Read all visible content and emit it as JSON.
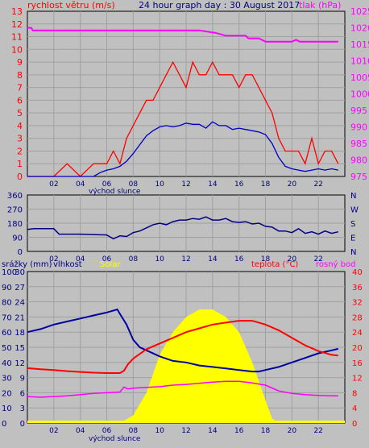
{
  "header": {
    "title": "24 hour graph day : 30 August 2017",
    "left_label": "rychlost větru (m/s)",
    "right_label": "tlak (hPa)"
  },
  "colors": {
    "background": "#c0c0c0",
    "grid": "#a0a0a0",
    "wind": "#ff0000",
    "wind_avg": "#0000c0",
    "pressure": "#ff00ff",
    "direction": "#000080",
    "humidity": "#0000a0",
    "temperature": "#ff0000",
    "dew_point": "#ff00ff",
    "solar": "#ffff00",
    "rain": "#ffff00",
    "axis_text_black": "#000080",
    "axis_text_red": "#ff0000",
    "axis_text_pink": "#ff00ff"
  },
  "chart_data": [
    {
      "id": "wind_pressure",
      "type": "line",
      "title": "24 hour graph day : 30 August 2017",
      "ylabel": "rychlost větru (m/s)",
      "y2label": "tlak (hPa)",
      "x_ticks": [
        "02",
        "04",
        "06",
        "08",
        "10",
        "12",
        "14",
        "16",
        "18",
        "20",
        "22"
      ],
      "x_caption": "východ slunce",
      "y_ticks": [
        0,
        1,
        2,
        3,
        4,
        5,
        6,
        7,
        8,
        9,
        10,
        11,
        12,
        13
      ],
      "y_range": [
        0,
        13
      ],
      "y2_ticks": [
        975,
        980,
        985,
        990,
        995,
        1000,
        1005,
        1010,
        1015,
        1020,
        1025
      ],
      "y2_range": [
        975,
        1025
      ],
      "series": [
        {
          "key": "gust",
          "color": "#ff0000",
          "x": [
            0,
            2,
            3,
            4,
            5,
            5.5,
            6,
            6.5,
            7,
            7.5,
            8,
            8.5,
            9,
            9.5,
            10,
            10.5,
            11,
            11.5,
            12,
            12.5,
            13,
            13.5,
            14,
            14.5,
            15,
            15.5,
            16,
            16.5,
            17,
            17.5,
            18,
            18.5,
            19,
            19.5,
            20,
            20.5,
            21,
            21.5,
            22,
            22.5,
            23,
            23.5
          ],
          "y": [
            0,
            0,
            1,
            0,
            1,
            1,
            1,
            2,
            1,
            3,
            4,
            5,
            6,
            6,
            7,
            8,
            9,
            8,
            7,
            9,
            8,
            8,
            9,
            8,
            8,
            8,
            7,
            8,
            8,
            7,
            6,
            5,
            3,
            2,
            2,
            2,
            1,
            3,
            1,
            2,
            2,
            1
          ]
        },
        {
          "key": "speed",
          "color": "#0000c0",
          "x": [
            0,
            2,
            4,
            5,
            5.5,
            6,
            6.5,
            7,
            7.5,
            8,
            8.5,
            9,
            9.5,
            10,
            10.5,
            11,
            11.5,
            12,
            12.5,
            13,
            13.5,
            14,
            14.5,
            15,
            15.5,
            16,
            16.5,
            17,
            17.5,
            18,
            18.5,
            19,
            19.5,
            20,
            20.5,
            21,
            21.5,
            22,
            22.5,
            23,
            23.5
          ],
          "y": [
            0,
            0,
            0,
            0,
            0.3,
            0.5,
            0.6,
            0.8,
            1.2,
            1.8,
            2.5,
            3.2,
            3.6,
            3.9,
            4.0,
            3.9,
            4.0,
            4.2,
            4.1,
            4.1,
            3.8,
            4.3,
            4.0,
            4.0,
            3.7,
            3.8,
            3.7,
            3.6,
            3.5,
            3.3,
            2.6,
            1.5,
            0.8,
            0.6,
            0.5,
            0.4,
            0.5,
            0.6,
            0.5,
            0.6,
            0.5
          ]
        },
        {
          "key": "pressure",
          "color": "#ff00ff",
          "axis": "y2",
          "x": [
            0,
            0.3,
            0.4,
            2,
            6,
            10,
            13,
            14.2,
            15,
            16.5,
            16.7,
            17.5,
            18,
            20,
            20.3,
            20.6,
            21,
            22,
            23.5
          ],
          "y": [
            1020,
            1020,
            1019.2,
            1019.2,
            1019.2,
            1019.2,
            1019.2,
            1018.5,
            1017.6,
            1017.6,
            1016.8,
            1016.8,
            1015.8,
            1015.8,
            1016.4,
            1015.8,
            1015.8,
            1015.8,
            1015.8
          ]
        }
      ]
    },
    {
      "id": "direction",
      "type": "line",
      "ylabel": "",
      "y_ticks": [
        0,
        90,
        180,
        270,
        360
      ],
      "y_range": [
        0,
        360
      ],
      "y2_ticks": [
        "N",
        "W",
        "S",
        "E",
        "N"
      ],
      "x_ticks": [
        "02",
        "04",
        "06",
        "08",
        "10",
        "12",
        "14",
        "16",
        "18",
        "20",
        "22"
      ],
      "series": [
        {
          "key": "direction",
          "color": "#000080",
          "x": [
            0,
            0.5,
            1,
            2,
            2.4,
            4,
            6,
            6.5,
            7,
            7.5,
            8,
            8.5,
            9,
            9.5,
            10,
            10.5,
            11,
            11.5,
            12,
            12.5,
            13,
            13.5,
            14,
            14.5,
            15,
            15.5,
            16,
            16.5,
            17,
            17.5,
            18,
            18.5,
            19,
            19.5,
            20,
            20.5,
            21,
            21.5,
            22,
            22.5,
            23,
            23.5
          ],
          "y": [
            140,
            145,
            145,
            145,
            110,
            110,
            105,
            80,
            100,
            95,
            120,
            130,
            150,
            170,
            180,
            170,
            190,
            200,
            200,
            210,
            205,
            220,
            200,
            200,
            210,
            190,
            185,
            190,
            175,
            180,
            160,
            155,
            130,
            130,
            120,
            145,
            115,
            125,
            110,
            130,
            115,
            125
          ]
        }
      ]
    },
    {
      "id": "rain_humidity_temp",
      "type": "line",
      "labels": {
        "rain": "srážky (mm)",
        "humidity": "vlhkost",
        "solar": "Solar",
        "temperature": "teplota (°C)",
        "dew_point": "rosný bod"
      },
      "x_ticks": [
        "02",
        "04",
        "06",
        "08",
        "10",
        "12",
        "14",
        "16",
        "18",
        "20",
        "22"
      ],
      "x_caption": "východ slunce",
      "y_ticks_rain": [
        "0",
        "3",
        "6",
        "9",
        "12",
        "15",
        "18",
        "21",
        "24",
        "27",
        "30"
      ],
      "y_ticks_humidity": [
        "0",
        "10",
        "20",
        "30",
        "40",
        "50",
        "60",
        "70",
        "80",
        "90",
        "100"
      ],
      "y_range": [
        0,
        100
      ],
      "y2_ticks": [
        "0",
        "4",
        "8",
        "12",
        "16",
        "20",
        "24",
        "28",
        "32",
        "36",
        "40"
      ],
      "y2_range": [
        0,
        40
      ],
      "series": [
        {
          "key": "humidity",
          "color": "#0000a0",
          "x": [
            0,
            1,
            2,
            3,
            4,
            5,
            6,
            6.8,
            7,
            7.5,
            8,
            8.5,
            9,
            10,
            11,
            12,
            13,
            14,
            15,
            16,
            17,
            17.5,
            18,
            19,
            20,
            21,
            22,
            23,
            23.5
          ],
          "y": [
            60,
            62,
            65,
            67,
            69,
            71,
            73,
            75,
            72,
            65,
            55,
            50,
            48,
            44,
            41,
            40,
            38,
            37,
            36,
            35,
            34,
            34,
            35,
            37,
            40,
            43,
            46,
            48,
            49
          ]
        },
        {
          "key": "solar",
          "color": "#ffff00",
          "x": [
            7,
            8,
            9,
            10,
            11,
            12,
            13,
            14,
            15,
            16,
            17,
            18,
            18.5,
            19
          ],
          "y": [
            0,
            5,
            20,
            45,
            60,
            70,
            75,
            75,
            70,
            60,
            40,
            15,
            3,
            0
          ]
        },
        {
          "key": "temperature",
          "color": "#ff0000",
          "axis": "y2",
          "x": [
            0,
            1,
            2,
            3,
            4,
            5,
            6,
            7,
            7.3,
            7.6,
            8,
            9,
            10,
            11,
            12,
            13,
            14,
            15,
            16,
            17,
            18,
            19,
            20,
            21,
            22,
            23,
            23.5
          ],
          "y": [
            14.5,
            14.2,
            14,
            13.7,
            13.5,
            13.3,
            13.2,
            13.2,
            13.8,
            15.5,
            17,
            19.5,
            21,
            22.5,
            24,
            25,
            26,
            26.5,
            27,
            27,
            26,
            24.5,
            22.5,
            20.5,
            19,
            18,
            17.8
          ]
        },
        {
          "key": "dew_point",
          "color": "#ff00ff",
          "axis": "y2",
          "x": [
            0,
            1,
            2,
            3,
            4,
            5,
            6,
            7,
            7.3,
            7.6,
            8,
            9,
            10,
            11,
            12,
            13,
            14,
            15,
            16,
            17,
            18,
            19,
            20,
            21,
            22,
            23,
            23.5
          ],
          "y": [
            7,
            6.8,
            7,
            7.2,
            7.5,
            7.8,
            8,
            8.2,
            9.5,
            9.0,
            9.2,
            9.4,
            9.6,
            10,
            10.2,
            10.5,
            10.8,
            11,
            11,
            10.6,
            10,
            8.5,
            7.8,
            7.5,
            7.3,
            7.2,
            7.2
          ]
        }
      ]
    }
  ]
}
